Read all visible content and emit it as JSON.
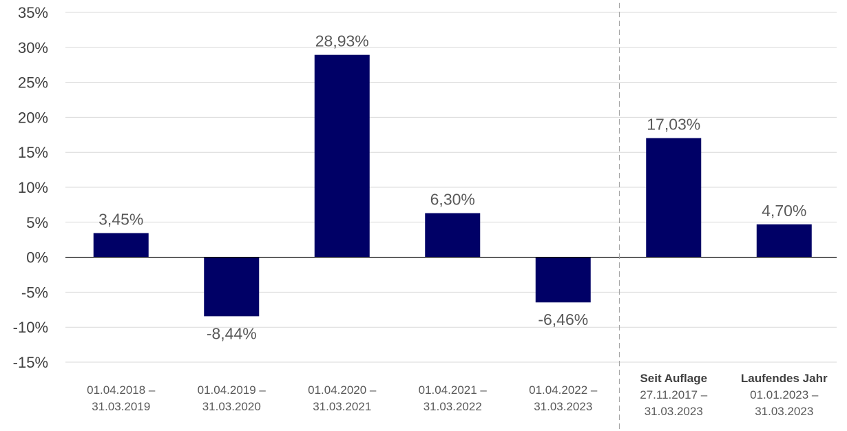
{
  "chart_data": {
    "type": "bar",
    "ylim": [
      -15,
      35
    ],
    "y_ticks": [
      35,
      30,
      25,
      20,
      15,
      10,
      5,
      0,
      -5,
      -10,
      -15
    ],
    "y_tick_labels": [
      "35%",
      "30%",
      "25%",
      "20%",
      "15%",
      "10%",
      "5%",
      "0%",
      "-5%",
      "-10%",
      "-15%"
    ],
    "grid": true,
    "bar_color": "#000066",
    "categories": [
      {
        "label_lines": [
          "01.04.2018 –",
          "31.03.2019"
        ],
        "bold_first_line": false,
        "value": 3.45,
        "value_label": "3,45%"
      },
      {
        "label_lines": [
          "01.04.2019 –",
          "31.03.2020"
        ],
        "bold_first_line": false,
        "value": -8.44,
        "value_label": "-8,44%"
      },
      {
        "label_lines": [
          "01.04.2020 –",
          "31.03.2021"
        ],
        "bold_first_line": false,
        "value": 28.93,
        "value_label": "28,93%"
      },
      {
        "label_lines": [
          "01.04.2021 –",
          "31.03.2022"
        ],
        "bold_first_line": false,
        "value": 6.3,
        "value_label": "6,30%"
      },
      {
        "label_lines": [
          "01.04.2022 –",
          "31.03.2023"
        ],
        "bold_first_line": false,
        "value": -6.46,
        "value_label": "-6,46%"
      },
      {
        "label_lines": [
          "Seit Auflage",
          "27.11.2017 –",
          "31.03.2023"
        ],
        "bold_first_line": true,
        "value": 17.03,
        "value_label": "17,03%"
      },
      {
        "label_lines": [
          "Laufendes Jahr",
          "01.01.2023 –",
          "31.03.2023"
        ],
        "bold_first_line": true,
        "value": 4.7,
        "value_label": "4,70%"
      }
    ],
    "divider_after_index": 4
  }
}
